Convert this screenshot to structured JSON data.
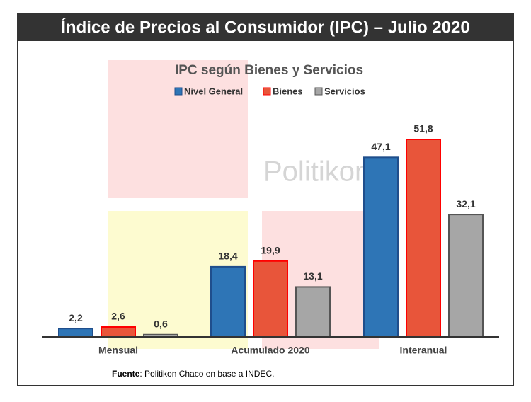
{
  "chart_data": {
    "type": "bar",
    "banner": "Índice de Precios al Consumidor (IPC) – Julio 2020",
    "title": "IPC según Bienes y Servicios",
    "watermark": "Politikon",
    "categories": [
      "Mensual",
      "Acumulado 2020",
      "Interanual"
    ],
    "series": [
      {
        "name": "Nivel General",
        "color": "#2e75b6",
        "values": [
          2.2,
          18.4,
          47.1
        ],
        "value_labels": [
          "2,2",
          "18,4",
          "47,1"
        ]
      },
      {
        "name": "Bienes",
        "color": "#e8553a",
        "values": [
          2.6,
          19.9,
          51.8
        ],
        "value_labels": [
          "2,6",
          "19,9",
          "51,8"
        ]
      },
      {
        "name": "Servicios",
        "color": "#a6a6a6",
        "values": [
          0.6,
          13.1,
          32.1
        ],
        "value_labels": [
          "0,6",
          "13,1",
          "32,1"
        ]
      }
    ],
    "legend": "top",
    "source_label": "Fuente",
    "source_text": ": Politikon Chaco en base a INDEC."
  }
}
